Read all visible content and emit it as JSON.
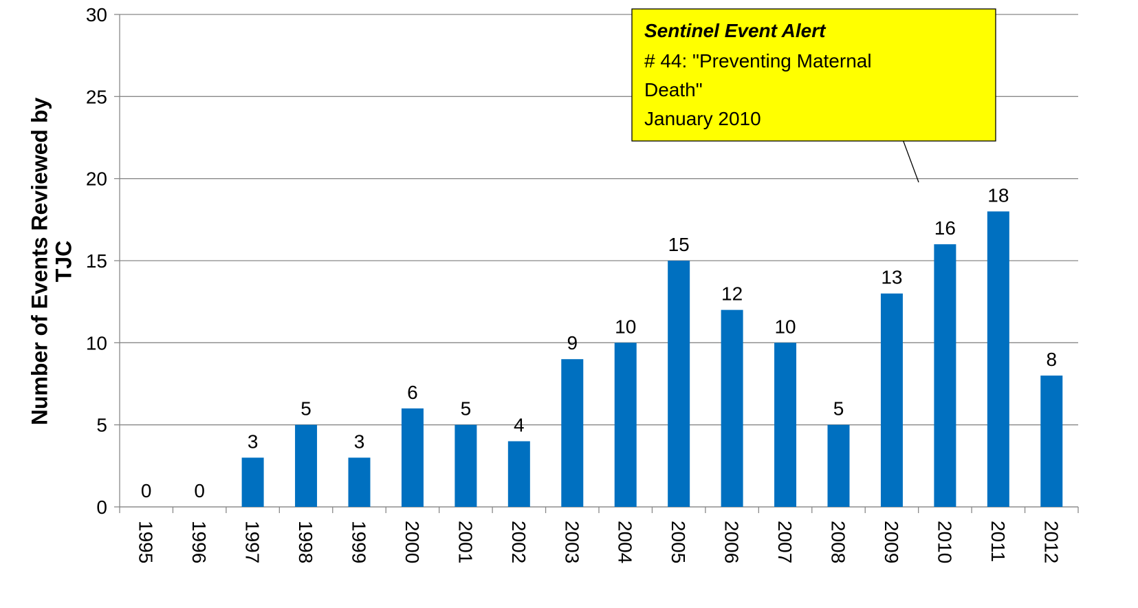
{
  "chart_data": {
    "type": "bar",
    "y_label": [
      "Number of Events Reviewed by",
      "TJC"
    ],
    "categories": [
      "1995",
      "1996",
      "1997",
      "1998",
      "1999",
      "2000",
      "2001",
      "2002",
      "2003",
      "2004",
      "2005",
      "2006",
      "2007",
      "2008",
      "2009",
      "2010",
      "2011",
      "2012"
    ],
    "values": [
      0,
      0,
      3,
      5,
      3,
      6,
      5,
      4,
      9,
      10,
      15,
      12,
      10,
      5,
      13,
      16,
      18,
      8
    ],
    "color": "#0070c0",
    "ylim": [
      0,
      30
    ],
    "yticks": [
      0,
      5,
      10,
      15,
      20,
      25,
      30
    ],
    "grid": true,
    "annotation": {
      "title": "Sentinel Event Alert",
      "lines": [
        "# 44: \"Preventing Maternal",
        "Death\"",
        "January 2010"
      ]
    }
  }
}
